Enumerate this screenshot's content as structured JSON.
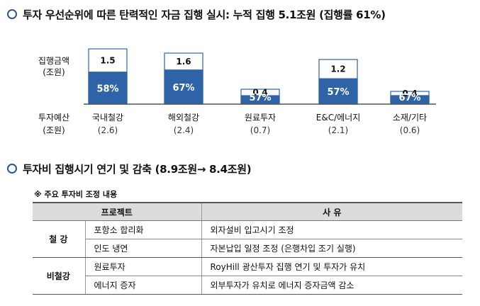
{
  "heading1": "투자 우선순위에 따른 탄력적인 자금 집행 실시:  누적 집행 5.1조원 (집행률 61%)",
  "heading2": "투자비 집행시기 연기 및 감축 (8.9조원→ 8.4조원)",
  "colors": {
    "bar_fill": "#2e63a8",
    "bar_outline": "#2e63a8",
    "remaining_fill": "#ffffff",
    "heading_circle": "#2f5597",
    "table_header": "#dcdcdc"
  },
  "chart_data": {
    "type": "bar",
    "stacked": true,
    "row_label_executed": "집행금액",
    "row_label_executed_unit": "(조원)",
    "row_label_budget": "투자예산",
    "row_label_budget_unit": "(조원)",
    "categories": [
      "국내철강",
      "해외철강",
      "원료투자",
      "E&C/에너지",
      "소재/기타"
    ],
    "budget": [
      2.6,
      2.4,
      0.7,
      2.1,
      0.6
    ],
    "budget_labels": [
      "(2.6)",
      "(2.4)",
      "(0.7)",
      "(2.1)",
      "(0.6)"
    ],
    "executed": [
      1.5,
      1.6,
      0.4,
      1.2,
      0.4
    ],
    "executed_labels": [
      "1.5",
      "1.6",
      "0.4",
      "1.2",
      "0.4"
    ],
    "execution_rate": [
      58,
      67,
      57,
      57,
      67
    ],
    "execution_rate_labels": [
      "58%",
      "67%",
      "57%",
      "57%",
      "67%"
    ]
  },
  "table": {
    "note": "※ 주요 투자비 조정 내용",
    "headers": [
      "프로젝트",
      "사  유"
    ],
    "groups": [
      {
        "name": "철 강",
        "rows": [
          {
            "project": "포항소 합리화",
            "reason": "외자설비 입고시기 조정"
          },
          {
            "project": "인도 냉연",
            "reason": "자본납입 일정 조정 (은행차입 조기 실행)"
          }
        ]
      },
      {
        "name": "비철강",
        "rows": [
          {
            "project": "원료투자",
            "reason": "RoyHill 광산투자 집행 연기 및 투자가 유치"
          },
          {
            "project": "에너지 증자",
            "reason": "외부투자가 유치로 에너지 증자금액 감소"
          }
        ]
      }
    ]
  }
}
